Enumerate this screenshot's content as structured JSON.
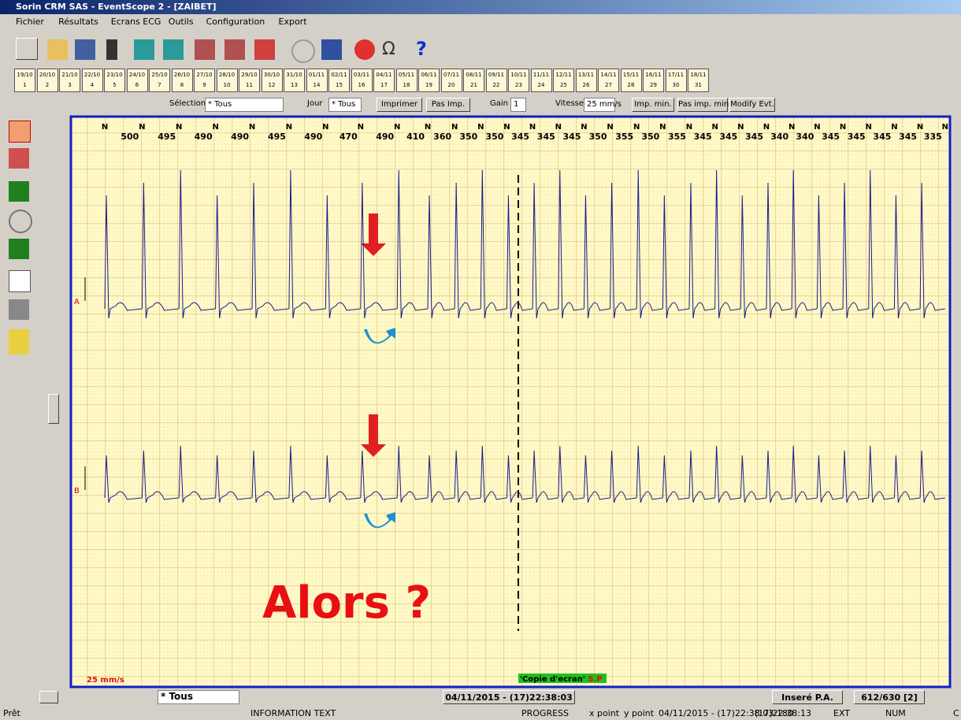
{
  "window": {
    "title": "Sorin CRM SAS - EventScope 2 - [ZAIBET]"
  },
  "menu": [
    "Fichier",
    "Résultats",
    "Ecrans ECG",
    "Outils",
    "Configuration",
    "Export"
  ],
  "days": [
    {
      "date": "19/10",
      "index": 1
    },
    {
      "date": "20/10",
      "index": 2
    },
    {
      "date": "21/10",
      "index": 3
    },
    {
      "date": "22/10",
      "index": 4
    },
    {
      "date": "23/10",
      "index": 5
    },
    {
      "date": "24/10",
      "index": 6
    },
    {
      "date": "25/10",
      "index": 7
    },
    {
      "date": "26/10",
      "index": 8
    },
    {
      "date": "27/10",
      "index": 9
    },
    {
      "date": "28/10",
      "index": 10
    },
    {
      "date": "29/10",
      "index": 11
    },
    {
      "date": "30/10",
      "index": 12
    },
    {
      "date": "31/10",
      "index": 13
    },
    {
      "date": "01/11",
      "index": 14
    },
    {
      "date": "02/11",
      "index": 15
    },
    {
      "date": "03/11",
      "index": 16
    },
    {
      "date": "04/11",
      "index": 17
    },
    {
      "date": "05/11",
      "index": 18
    },
    {
      "date": "06/11",
      "index": 19
    },
    {
      "date": "07/11",
      "index": 20
    },
    {
      "date": "08/11",
      "index": 21
    },
    {
      "date": "09/11",
      "index": 22
    },
    {
      "date": "10/11",
      "index": 23
    },
    {
      "date": "11/11",
      "index": 24
    },
    {
      "date": "12/11",
      "index": 25
    },
    {
      "date": "13/11",
      "index": 26
    },
    {
      "date": "14/11",
      "index": 27
    },
    {
      "date": "15/11",
      "index": 28
    },
    {
      "date": "16/11",
      "index": 29
    },
    {
      "date": "17/11",
      "index": 30
    },
    {
      "date": "18/11",
      "index": 31
    }
  ],
  "filters": {
    "selection_label": "Sélection",
    "selection": "* Tous",
    "jour_label": "Jour",
    "jour": "* Tous",
    "print": "Imprimer",
    "no_print": "Pas Imp.",
    "gain_label": "Gain",
    "gain": "1",
    "speed_label": "Vitesse",
    "speed": "25 mm/s",
    "print_min": "Imp. min.",
    "no_print_min": "Pas imp. min.",
    "modify": "Modify Evt."
  },
  "ecg": {
    "beat_labels": [
      "N",
      "N",
      "N",
      "N",
      "N",
      "N",
      "N",
      "N",
      "N",
      "N",
      "N",
      "N",
      "N",
      "N",
      "N",
      "N",
      "N",
      "N",
      "N",
      "N",
      "N",
      "N",
      "N",
      "N",
      "N",
      "N",
      "N",
      "N",
      "N",
      "N"
    ],
    "intervals": [
      500,
      495,
      490,
      490,
      495,
      490,
      470,
      490,
      410,
      360,
      350,
      350,
      345,
      345,
      345,
      350,
      355,
      350,
      355,
      345,
      345,
      345,
      340,
      340,
      345,
      345,
      345,
      345,
      335
    ],
    "channels": [
      "A",
      "B"
    ],
    "annotation": "Alors ?",
    "speed": "25 mm/s",
    "stamp": "'Copie d'ecran'",
    "stamp_author": "S.P"
  },
  "bottom_bar": {
    "selection": "* Tous",
    "datetime": "04/11/2015 - (17)22:38:03",
    "status": "Inseré P.A.",
    "page": "612/630 [2]"
  },
  "status_bar": [
    "Prêt",
    "INFORMATION TEXT",
    "PROGRESS",
    "x point",
    "y point",
    "04/11/2015 - (17)22:38:03:180",
    "(17)22:38:13",
    "EXT",
    "NUM",
    "C"
  ]
}
